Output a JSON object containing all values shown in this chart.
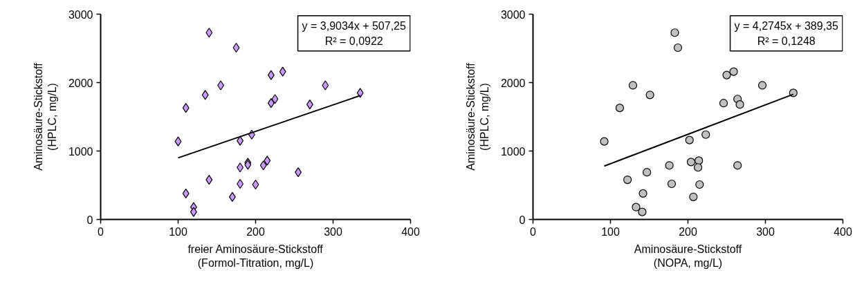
{
  "chart_data": [
    {
      "type": "scatter",
      "xlabel": "freier Aminosäure-Stickstoff\n(Formol-Titration, mg/L)",
      "ylabel": "Aminosäure-Stickstoff\n(HPLC, mg/L)",
      "xlim": [
        0,
        400
      ],
      "ylim": [
        0,
        3000
      ],
      "xticks": [
        0,
        100,
        200,
        300,
        400
      ],
      "yticks": [
        0,
        1000,
        2000,
        3000
      ],
      "annotations": [
        "y = 3,9034x + 507,25",
        "R² = 0,0922"
      ],
      "series": [
        {
          "color": "#cc99ff",
          "marker": "diamond",
          "x": [
            140,
            175,
            220,
            155,
            135,
            225,
            220,
            110,
            195,
            180,
            100,
            215,
            190,
            210,
            180,
            140,
            180,
            200,
            110,
            170,
            120,
            120,
            235,
            290,
            335,
            270,
            255,
            190
          ],
          "values": [
            2730,
            2510,
            2110,
            1960,
            1820,
            1760,
            1700,
            1630,
            1240,
            1150,
            1140,
            860,
            830,
            790,
            760,
            580,
            520,
            510,
            380,
            330,
            180,
            110,
            2160,
            1960,
            1850,
            1680,
            690,
            800
          ]
        },
        {
          "type": "line",
          "marker": "none",
          "color": "#000000",
          "x": [
            100,
            335
          ],
          "values": [
            900,
            1810
          ]
        }
      ]
    },
    {
      "type": "scatter",
      "xlabel": "Aminosäure-Stickstoff\n(NOPA, mg/L)",
      "ylabel": "Aminosäure-Stickstoff\n(HPLC, mg/L)",
      "xlim": [
        0,
        400
      ],
      "ylim": [
        0,
        3000
      ],
      "xticks": [
        0,
        100,
        200,
        300,
        400
      ],
      "yticks": [
        0,
        1000,
        2000,
        3000
      ],
      "annotations": [
        "y = 4,2745x + 389,35",
        "R² = 0,1248"
      ],
      "series": [
        {
          "color": "#c0c0c0",
          "marker": "circle",
          "x": [
            183,
            187,
            129,
            151,
            112,
            92,
            202,
            223,
            204,
            214,
            213,
            176,
            147,
            122,
            179,
            215,
            142,
            207,
            133,
            141,
            250,
            259,
            264,
            246,
            296,
            267,
            336,
            264
          ],
          "values": [
            2730,
            2510,
            1960,
            1820,
            1630,
            1140,
            1160,
            1240,
            840,
            860,
            760,
            790,
            690,
            580,
            520,
            510,
            380,
            330,
            180,
            110,
            2110,
            2160,
            1760,
            1700,
            1960,
            1680,
            1850,
            790
          ]
        },
        {
          "type": "line",
          "marker": "none",
          "color": "#000000",
          "x": [
            92,
            336
          ],
          "values": [
            780,
            1830
          ]
        }
      ]
    }
  ]
}
